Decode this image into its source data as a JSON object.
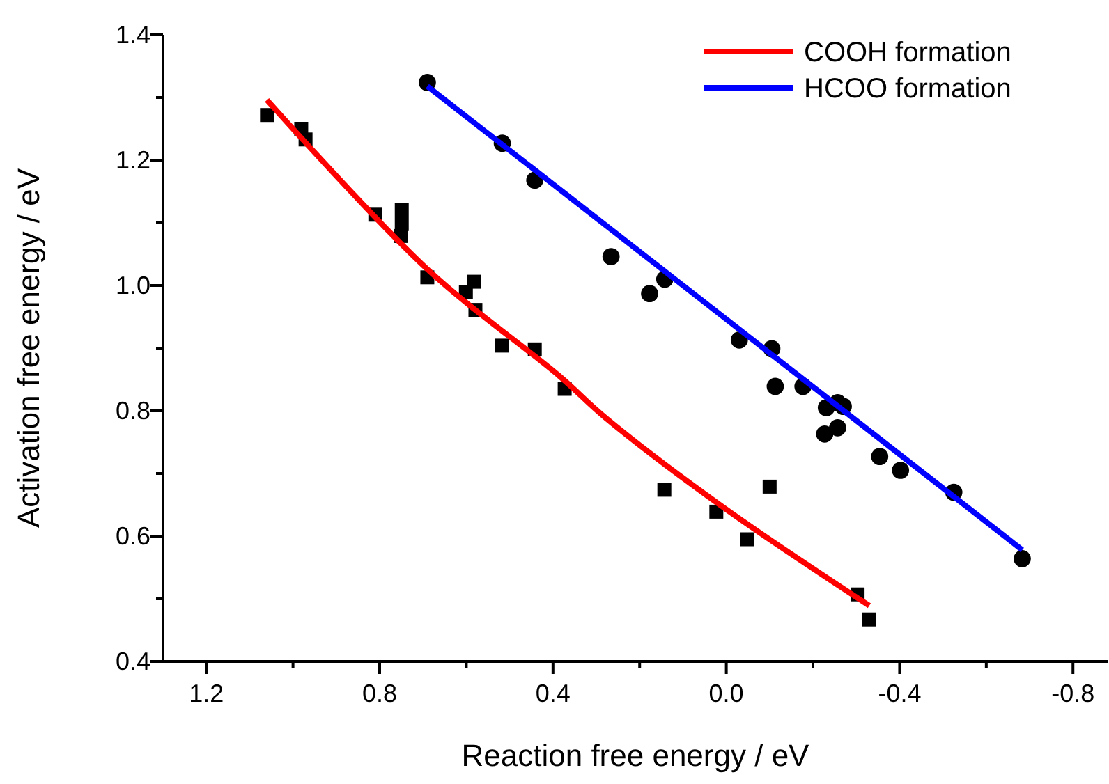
{
  "chart_data": {
    "type": "scatter",
    "xlabel": "Reaction free energy / eV",
    "ylabel": "Activation free energy / eV",
    "xlim": [
      1.3,
      -0.88
    ],
    "ylim": [
      0.4,
      1.4
    ],
    "xticks": [
      1.2,
      {
        "value": 1.0,
        "label": null
      },
      0.8,
      {
        "value": 0.6,
        "label": null
      },
      0.4,
      {
        "value": 0.2,
        "label": null
      },
      {
        "value": 0,
        "label": "0.0"
      },
      {
        "value": -0.2,
        "label": null
      },
      -0.4,
      {
        "value": -0.6,
        "label": null
      },
      -0.8
    ],
    "yticks": [
      0.4,
      {
        "value": 0.5,
        "label": null
      },
      0.6,
      {
        "value": 0.7,
        "label": null
      },
      0.8,
      {
        "value": 0.9,
        "label": null
      },
      {
        "value": 1.0,
        "label": "1.0"
      },
      {
        "value": 1.1,
        "label": null
      },
      1.2,
      {
        "value": 1.3,
        "label": null
      },
      1.4
    ],
    "grid": false,
    "legend": "top right",
    "series": [
      {
        "type": "scatter",
        "marker": "square",
        "color": "#000000",
        "x": [
          1.06,
          0.981,
          0.971,
          0.81,
          0.749,
          0.749,
          0.751,
          0.69,
          0.582,
          0.601,
          0.579,
          0.518,
          0.442,
          0.373,
          0.143,
          0.023,
          -0.048,
          -0.1,
          -0.303,
          -0.329
        ],
        "values": [
          1.272,
          1.25,
          1.233,
          1.113,
          1.121,
          1.098,
          1.079,
          1.013,
          1.006,
          0.989,
          0.961,
          0.904,
          0.898,
          0.835,
          0.674,
          0.639,
          0.595,
          0.679,
          0.507,
          0.467
        ]
      },
      {
        "type": "scatter",
        "marker": "circle",
        "color": "#000000",
        "x": [
          0.69,
          0.517,
          0.442,
          0.266,
          0.177,
          0.142,
          -0.03,
          -0.105,
          -0.113,
          -0.177,
          -0.231,
          -0.257,
          -0.27,
          -0.227,
          -0.257,
          -0.354,
          -0.402,
          -0.525,
          -0.683
        ],
        "values": [
          1.324,
          1.227,
          1.168,
          1.046,
          0.987,
          1.01,
          0.913,
          0.899,
          0.839,
          0.839,
          0.805,
          0.813,
          0.807,
          0.763,
          0.773,
          0.727,
          0.705,
          0.67,
          0.564
        ]
      },
      {
        "type": "line",
        "name": "COOH formation",
        "color": "#ff0000",
        "line_style": "solid",
        "marker": "none",
        "x": [
          1.06,
          0.69,
          0.386,
          0.279,
          0.011,
          -0.33
        ],
        "values": [
          1.296,
          1.026,
          0.856,
          0.789,
          0.648,
          0.489
        ]
      },
      {
        "type": "line",
        "name": "HCOO formation",
        "color": "#0000ff",
        "line_style": "solid",
        "marker": "none",
        "x": [
          0.69,
          -0.683
        ],
        "values": [
          1.318,
          0.578
        ]
      }
    ]
  }
}
